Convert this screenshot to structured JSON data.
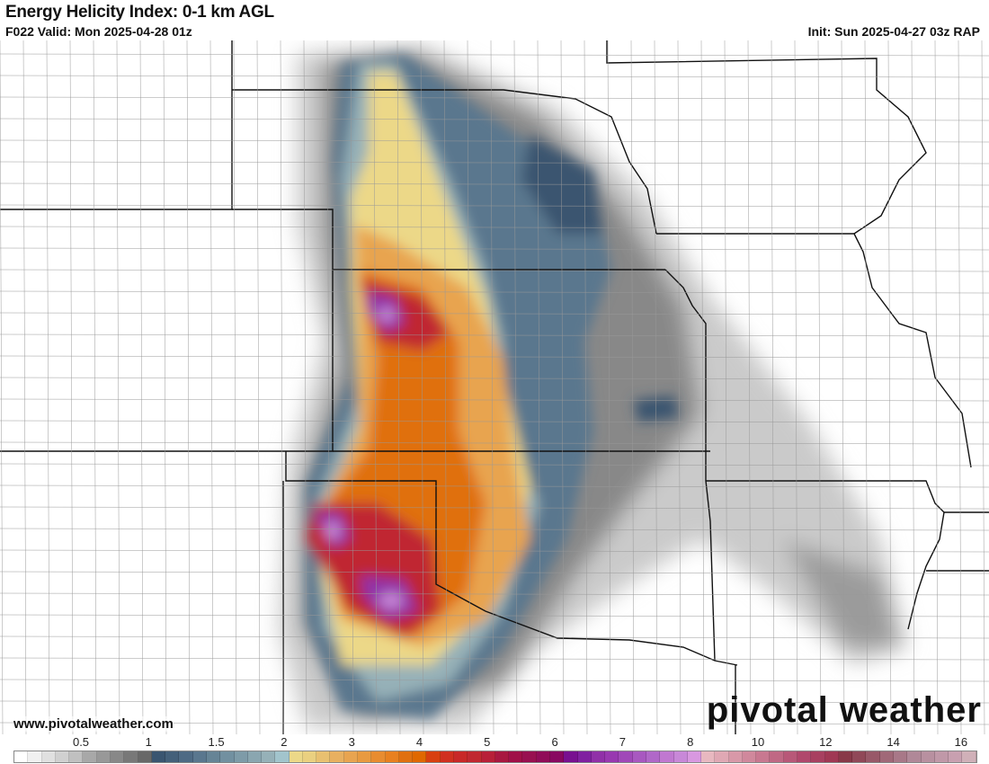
{
  "header": {
    "title": "Energy Helicity Index: 0-1 km AGL",
    "valid": "F022 Valid: Mon 2025-04-28 01z",
    "init": "Init: Sun 2025-04-27 03z RAP"
  },
  "footer": {
    "website": "www.pivotalweather.com",
    "logo": "pivotal weather"
  },
  "colorbar": {
    "labels": [
      "0.5",
      "1",
      "1.5",
      "2",
      "3",
      "4",
      "5",
      "6",
      "7",
      "8",
      "10",
      "12",
      "14",
      "16"
    ],
    "colors": [
      "#ffffff",
      "#f0f0f0",
      "#e0e0e0",
      "#d0d0d0",
      "#c0c0c0",
      "#a8a8a8",
      "#989898",
      "#888888",
      "#787878",
      "#686868",
      "#3a5570",
      "#44607a",
      "#4e6a84",
      "#5a778e",
      "#668496",
      "#7290a0",
      "#7e9ba8",
      "#8aa6b0",
      "#96b1b8",
      "#a2c4cc",
      "#ecd888",
      "#ead080",
      "#e8c070",
      "#e8b060",
      "#e8a450",
      "#e89a40",
      "#e88c30",
      "#e88020",
      "#e07010",
      "#e06800",
      "#d84010",
      "#d03020",
      "#c82828",
      "#c02830",
      "#b82038",
      "#a81840",
      "#a01048",
      "#981050",
      "#900c58",
      "#880860",
      "#781090",
      "#8020a0",
      "#9030a8",
      "#9838b0",
      "#a048b8",
      "#a858c0",
      "#b068c8",
      "#c078d0",
      "#c888d8",
      "#d898e0",
      "#e8b8c0",
      "#e0a8b4",
      "#d898a8",
      "#d0889c",
      "#c87890",
      "#c06884",
      "#b85878",
      "#b0486c",
      "#a84060",
      "#a03854",
      "#883848",
      "#904858",
      "#985868",
      "#a06878",
      "#a87888",
      "#b08898",
      "#b890a0",
      "#c098a8",
      "#c8a0b0",
      "#d0b0b8"
    ]
  }
}
